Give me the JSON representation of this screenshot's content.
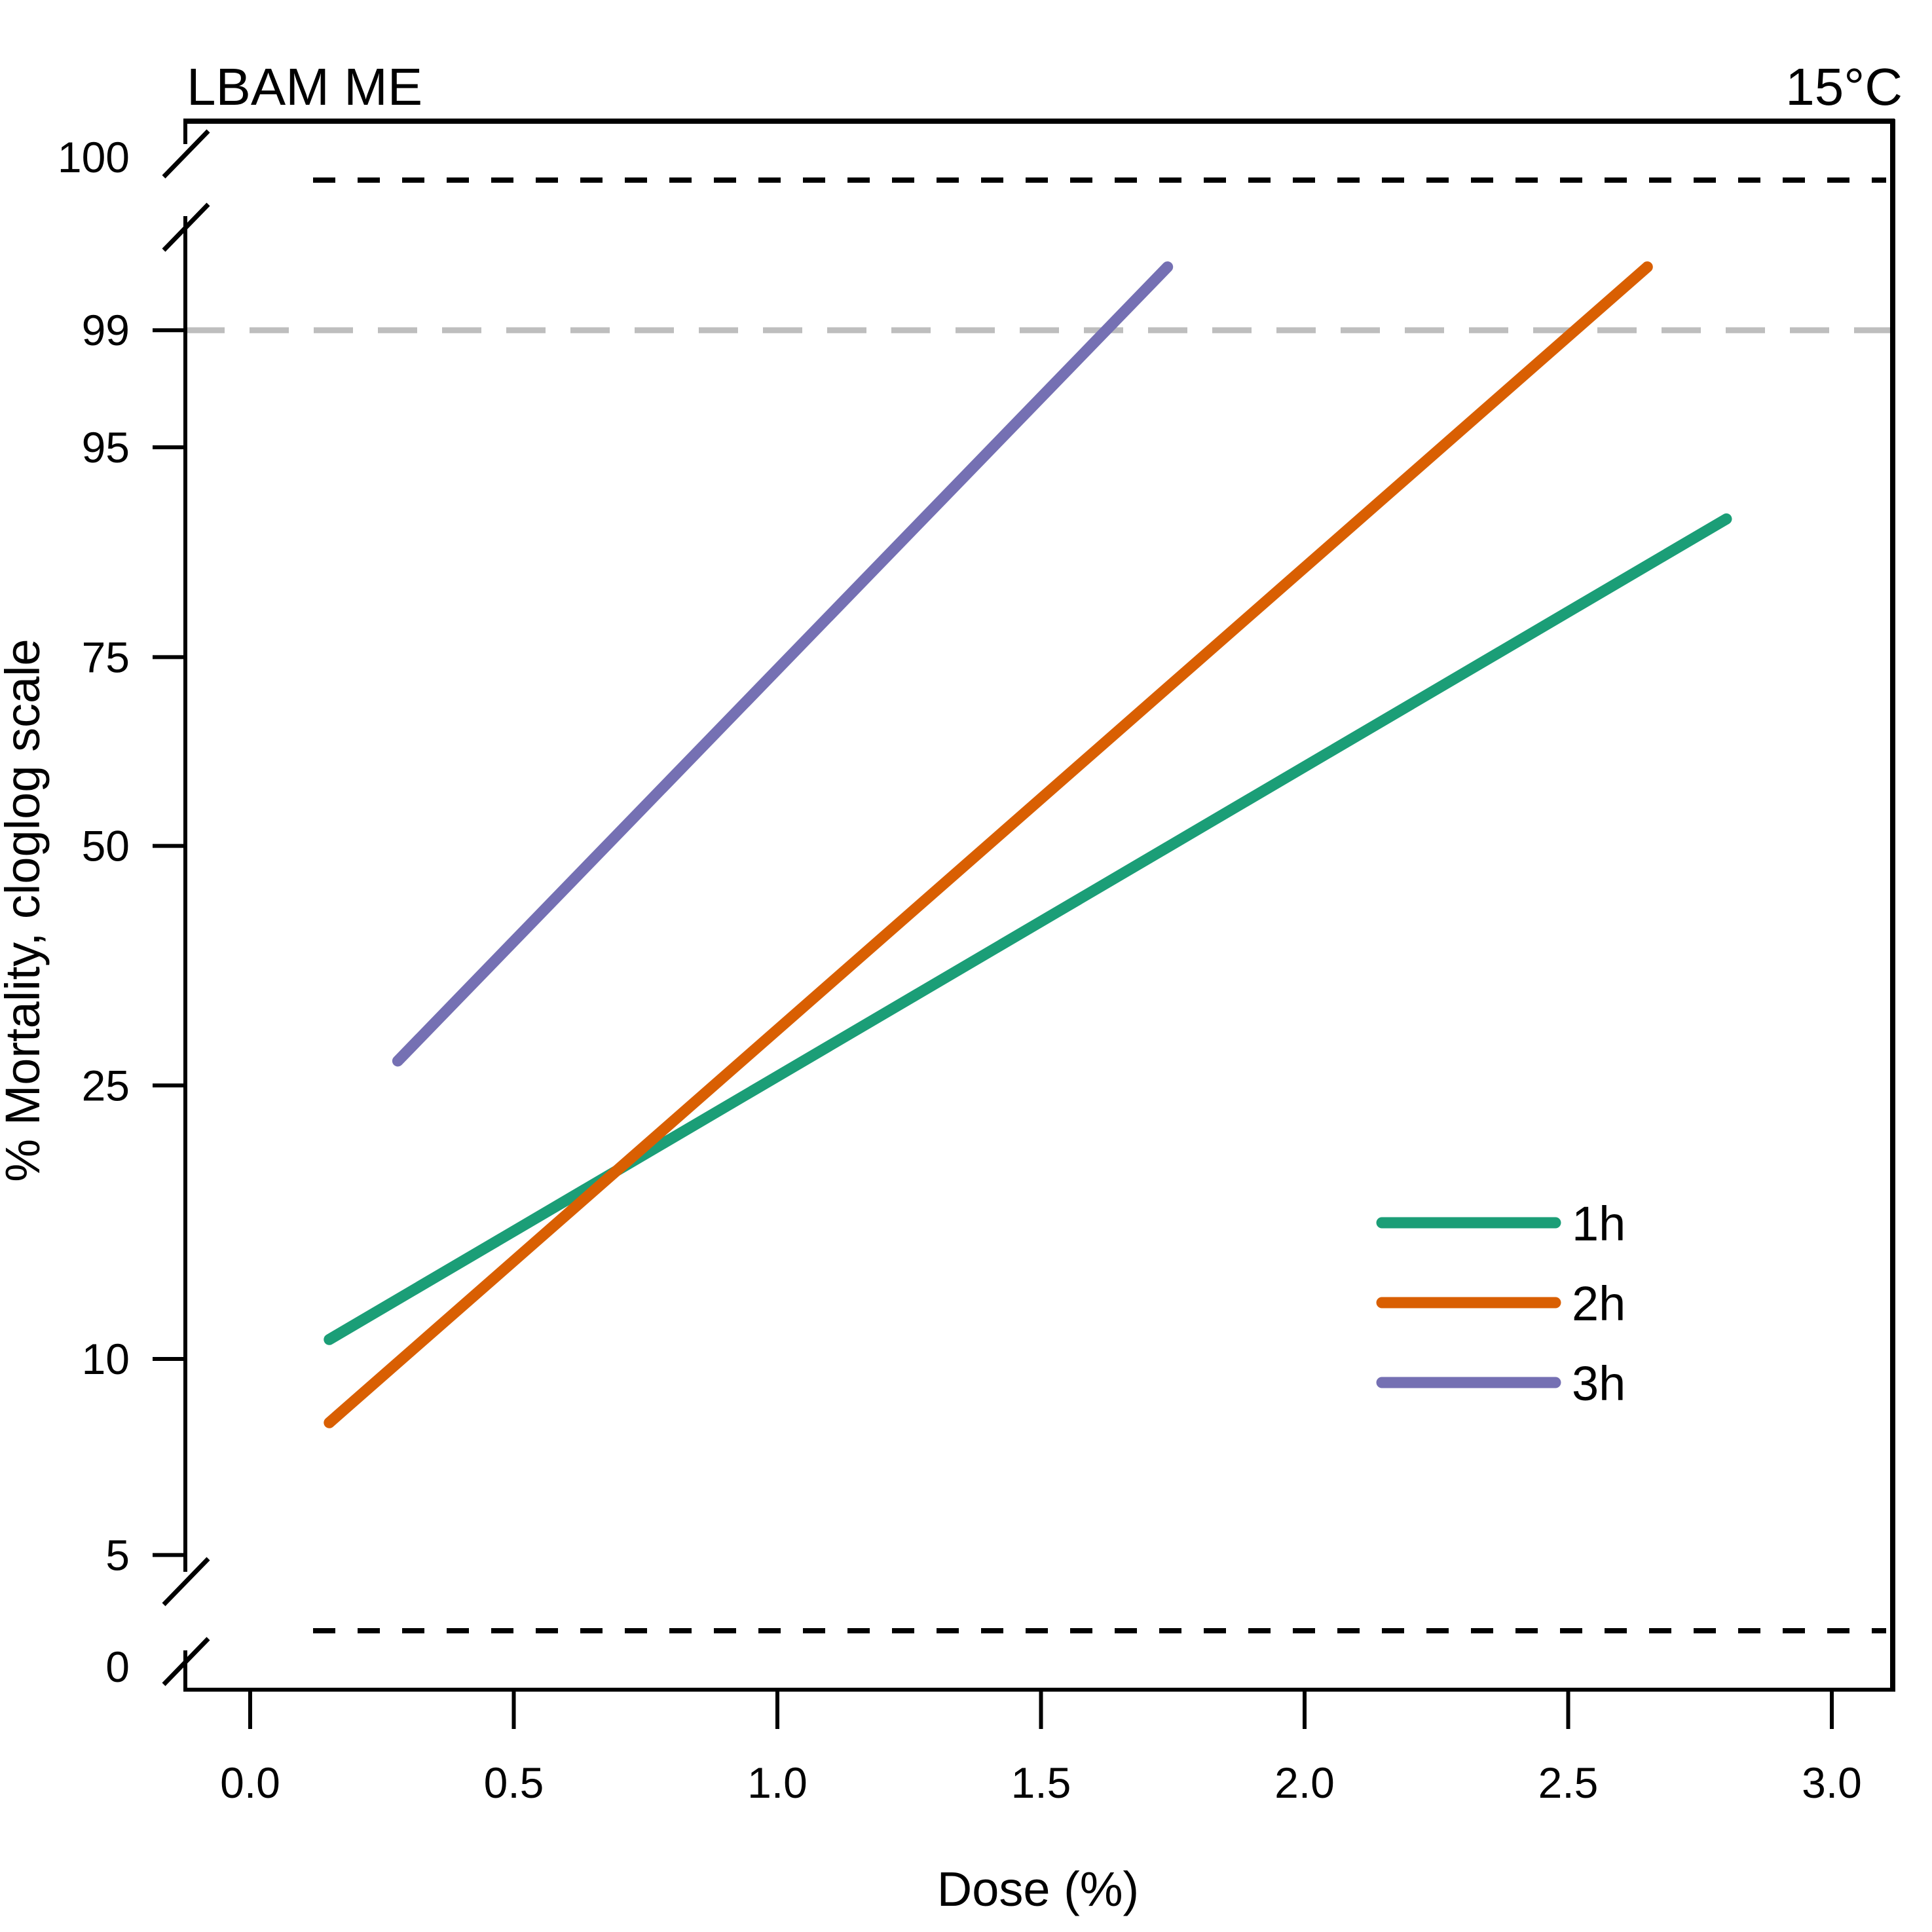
{
  "chart_data": {
    "type": "line",
    "title_left": "LBAM ME",
    "title_right": "15°C",
    "xlabel": "Dose (%)",
    "ylabel": "% Mortality, cloglog scale",
    "y_scale": "cloglog",
    "xlim": [
      -0.12,
      3.12
    ],
    "x_ticks": [
      0.0,
      0.5,
      1.0,
      1.5,
      2.0,
      2.5,
      3.0
    ],
    "x_tick_labels": [
      "0.0",
      "0.5",
      "1.0",
      "1.5",
      "2.0",
      "2.5",
      "3.0"
    ],
    "y_ticks": [
      0,
      5,
      10,
      25,
      50,
      75,
      95,
      99,
      100
    ],
    "y_tick_labels": [
      "0",
      "5",
      "10",
      "25",
      "50",
      "75",
      "95",
      "99",
      "100"
    ],
    "axis_breaks": [
      "between 0 and 5",
      "between 99 and 100"
    ],
    "reference_lines": [
      {
        "y": 0,
        "style": "dashed",
        "color": "#000000"
      },
      {
        "y": 99,
        "style": "dashed",
        "color": "#bebebe"
      },
      {
        "y": 100,
        "style": "dashed",
        "color": "#000000"
      }
    ],
    "grid": false,
    "legend_position": "bottom-right",
    "series": [
      {
        "name": "1h",
        "color": "#1b9e77",
        "x": [
          0.15,
          2.8
        ],
        "y": [
          10.7,
          90.0
        ]
      },
      {
        "name": "2h",
        "color": "#d95f02",
        "x": [
          0.15,
          2.65
        ],
        "y": [
          8.0,
          99.7
        ]
      },
      {
        "name": "3h",
        "color": "#7570b3",
        "x": [
          0.28,
          1.74
        ],
        "y": [
          27.0,
          99.7
        ]
      }
    ]
  }
}
